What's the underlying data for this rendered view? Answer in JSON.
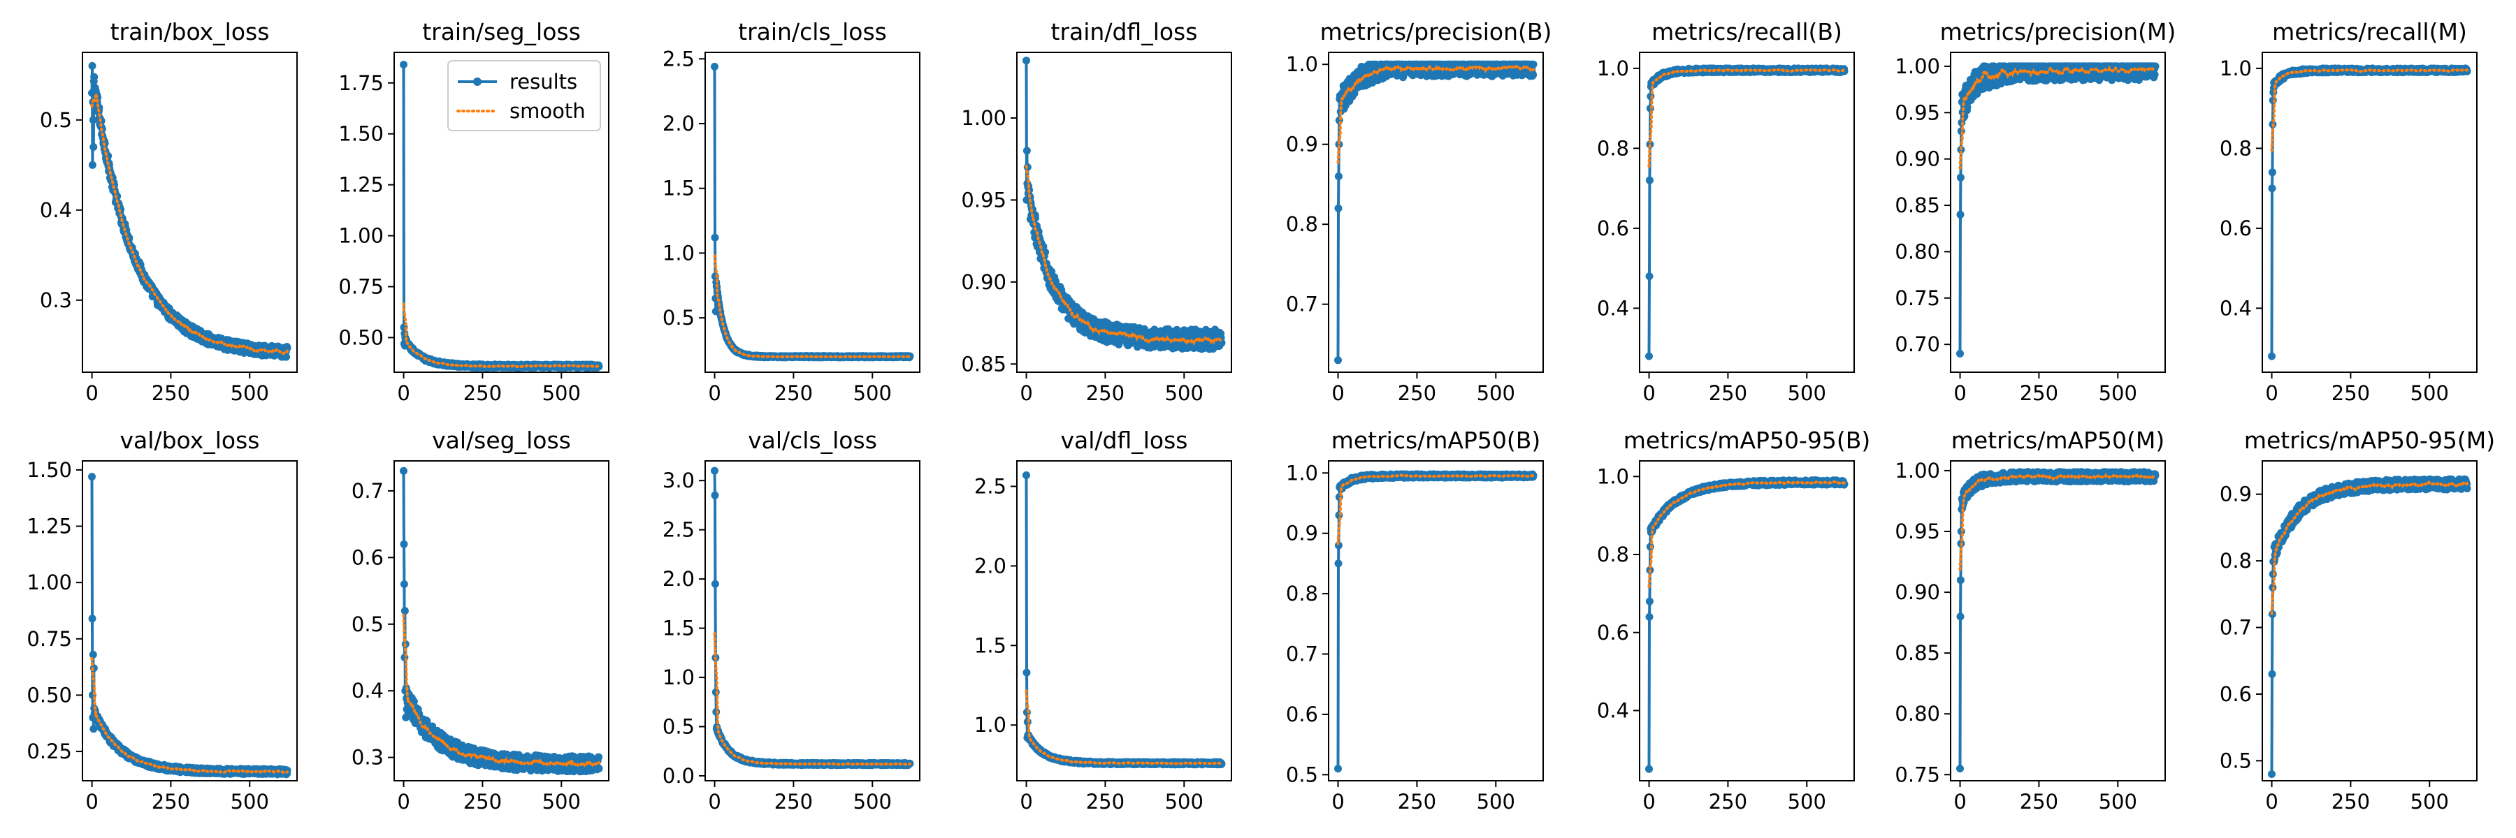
{
  "colors": {
    "results": "#1f77b4",
    "smooth": "#ff7f0e",
    "frame": "#000000",
    "background": "#ffffff"
  },
  "legend": {
    "location": "upper right of panel train/seg_loss",
    "entries": [
      {
        "label": "results",
        "style": "solid line with circle markers",
        "color": "#1f77b4"
      },
      {
        "label": "smooth",
        "style": "dotted line",
        "color": "#ff7f0e"
      }
    ]
  },
  "chart_data": [
    {
      "type": "line",
      "title": "train/box_loss",
      "xlabel": "",
      "ylabel": "",
      "epochs": 620,
      "xlim": [
        -30,
        650
      ],
      "ylim": [
        0.22,
        0.575
      ],
      "xticks": [
        0,
        250,
        500
      ],
      "xtick_labels": [
        "0",
        "250",
        "500"
      ],
      "yticks": [
        0.3,
        0.4,
        0.5
      ],
      "ytick_labels": [
        "0.3",
        "0.4",
        "0.5"
      ],
      "shape": "decay",
      "curve": {
        "start": 0.56,
        "end": 0.24,
        "k": 0.008,
        "slope": 4e-05
      },
      "noise": 0.006,
      "early_points": [
        0.53,
        0.56,
        0.45,
        0.52,
        0.5,
        0.47
      ],
      "series": [
        {
          "name": "results"
        },
        {
          "name": "smooth"
        }
      ]
    },
    {
      "type": "line",
      "title": "train/seg_loss",
      "xlabel": "",
      "ylabel": "",
      "epochs": 620,
      "xlim": [
        -30,
        650
      ],
      "ylim": [
        0.33,
        1.9
      ],
      "xticks": [
        0,
        250,
        500
      ],
      "xtick_labels": [
        "0",
        "250",
        "500"
      ],
      "yticks": [
        0.5,
        0.75,
        1.0,
        1.25,
        1.5,
        1.75
      ],
      "ytick_labels": [
        "0.50",
        "0.75",
        "1.00",
        "1.25",
        "1.50",
        "1.75"
      ],
      "shape": "decay",
      "curve": {
        "start": 0.5,
        "end": 0.36,
        "k": 0.02,
        "slope": 4e-05
      },
      "noise": 0.008,
      "early_points": [
        1.84,
        0.55,
        0.47,
        0.52,
        0.46,
        0.5
      ],
      "legend": true,
      "series": [
        {
          "name": "results"
        },
        {
          "name": "smooth"
        }
      ]
    },
    {
      "type": "line",
      "title": "train/cls_loss",
      "xlabel": "",
      "ylabel": "",
      "epochs": 620,
      "xlim": [
        -30,
        650
      ],
      "ylim": [
        0.08,
        2.55
      ],
      "xticks": [
        0,
        250,
        500
      ],
      "xtick_labels": [
        "0",
        "250",
        "500"
      ],
      "yticks": [
        0.5,
        1.0,
        1.5,
        2.0,
        2.5
      ],
      "ytick_labels": [
        "0.5",
        "1.0",
        "1.5",
        "2.0",
        "2.5"
      ],
      "shape": "decay",
      "curve": {
        "start": 0.9,
        "end": 0.2,
        "k": 0.04,
        "slope": 3e-05
      },
      "noise": 0.006,
      "early_points": [
        2.44,
        1.12,
        0.82,
        0.65,
        0.55
      ],
      "series": [
        {
          "name": "results"
        },
        {
          "name": "smooth"
        }
      ]
    },
    {
      "type": "line",
      "title": "train/dfl_loss",
      "xlabel": "",
      "ylabel": "",
      "epochs": 620,
      "xlim": [
        -30,
        650
      ],
      "ylim": [
        0.845,
        1.04
      ],
      "xticks": [
        0,
        250,
        500
      ],
      "xtick_labels": [
        "0",
        "250",
        "500"
      ],
      "yticks": [
        0.85,
        0.9,
        0.95,
        1.0
      ],
      "ytick_labels": [
        "0.85",
        "0.90",
        "0.95",
        "1.00"
      ],
      "shape": "decay",
      "curve": {
        "start": 0.96,
        "end": 0.865,
        "k": 0.012,
        "slope": 0.0
      },
      "noise": 0.006,
      "early_points": [
        1.035,
        0.95,
        0.98,
        0.96,
        0.97
      ],
      "series": [
        {
          "name": "results"
        },
        {
          "name": "smooth"
        }
      ]
    },
    {
      "type": "line",
      "title": "metrics/precision(B)",
      "xlabel": "",
      "ylabel": "",
      "epochs": 620,
      "xlim": [
        -30,
        650
      ],
      "ylim": [
        0.615,
        1.015
      ],
      "xticks": [
        0,
        250,
        500
      ],
      "xtick_labels": [
        "0",
        "250",
        "500"
      ],
      "yticks": [
        0.7,
        0.8,
        0.9,
        1.0
      ],
      "ytick_labels": [
        "0.7",
        "0.8",
        "0.9",
        "1.0"
      ],
      "shape": "rise",
      "curve": {
        "start": 0.94,
        "end": 0.997,
        "k": 0.02,
        "slope": 0.0
      },
      "noise": 0.012,
      "early_points": [
        0.63,
        0.82,
        0.86,
        0.9,
        0.93
      ],
      "series": [
        {
          "name": "results"
        },
        {
          "name": "smooth"
        }
      ]
    },
    {
      "type": "line",
      "title": "metrics/recall(B)",
      "xlabel": "",
      "ylabel": "",
      "epochs": 620,
      "xlim": [
        -30,
        650
      ],
      "ylim": [
        0.24,
        1.04
      ],
      "xticks": [
        0,
        250,
        500
      ],
      "xtick_labels": [
        "0",
        "250",
        "500"
      ],
      "yticks": [
        0.4,
        0.6,
        0.8,
        1.0
      ],
      "ytick_labels": [
        "0.4",
        "0.6",
        "0.8",
        "1.0"
      ],
      "shape": "rise",
      "curve": {
        "start": 0.95,
        "end": 0.995,
        "k": 0.03,
        "slope": 0.0
      },
      "noise": 0.005,
      "early_points": [
        0.28,
        0.48,
        0.72,
        0.81,
        0.9,
        0.93
      ],
      "series": [
        {
          "name": "results"
        },
        {
          "name": "smooth"
        }
      ]
    },
    {
      "type": "line",
      "title": "metrics/precision(M)",
      "xlabel": "",
      "ylabel": "",
      "epochs": 620,
      "xlim": [
        -30,
        650
      ],
      "ylim": [
        0.67,
        1.015
      ],
      "xticks": [
        0,
        250,
        500
      ],
      "xtick_labels": [
        "0",
        "250",
        "500"
      ],
      "yticks": [
        0.7,
        0.75,
        0.8,
        0.85,
        0.9,
        0.95,
        1.0
      ],
      "ytick_labels": [
        "0.70",
        "0.75",
        "0.80",
        "0.85",
        "0.90",
        "0.95",
        "1.00"
      ],
      "shape": "rise",
      "curve": {
        "start": 0.95,
        "end": 0.997,
        "k": 0.02,
        "slope": 0.0
      },
      "noise": 0.012,
      "early_points": [
        0.69,
        0.84,
        0.88,
        0.91,
        0.93
      ],
      "series": [
        {
          "name": "results"
        },
        {
          "name": "smooth"
        }
      ]
    },
    {
      "type": "line",
      "title": "metrics/recall(M)",
      "xlabel": "",
      "ylabel": "",
      "epochs": 620,
      "xlim": [
        -30,
        650
      ],
      "ylim": [
        0.24,
        1.04
      ],
      "xticks": [
        0,
        250,
        500
      ],
      "xtick_labels": [
        "0",
        "250",
        "500"
      ],
      "yticks": [
        0.4,
        0.6,
        0.8,
        1.0
      ],
      "ytick_labels": [
        "0.4",
        "0.6",
        "0.8",
        "1.0"
      ],
      "shape": "rise",
      "curve": {
        "start": 0.95,
        "end": 0.995,
        "k": 0.03,
        "slope": 0.0
      },
      "noise": 0.005,
      "early_points": [
        0.28,
        0.7,
        0.74,
        0.86,
        0.92,
        0.94
      ],
      "series": [
        {
          "name": "results"
        },
        {
          "name": "smooth"
        }
      ]
    },
    {
      "type": "line",
      "title": "val/box_loss",
      "xlabel": "",
      "ylabel": "",
      "epochs": 620,
      "xlim": [
        -30,
        650
      ],
      "ylim": [
        0.12,
        1.54
      ],
      "xticks": [
        0,
        250,
        500
      ],
      "xtick_labels": [
        "0",
        "250",
        "500"
      ],
      "yticks": [
        0.25,
        0.5,
        0.75,
        1.0,
        1.25,
        1.5
      ],
      "ytick_labels": [
        "0.25",
        "0.50",
        "0.75",
        "1.00",
        "1.25",
        "1.50"
      ],
      "shape": "decay",
      "curve": {
        "start": 0.45,
        "end": 0.16,
        "k": 0.012,
        "slope": 4e-05
      },
      "noise": 0.012,
      "early_points": [
        1.47,
        0.84,
        0.5,
        0.4,
        0.68,
        0.35,
        0.62
      ],
      "series": [
        {
          "name": "results"
        },
        {
          "name": "smooth"
        }
      ]
    },
    {
      "type": "line",
      "title": "val/seg_loss",
      "xlabel": "",
      "ylabel": "",
      "epochs": 620,
      "xlim": [
        -30,
        650
      ],
      "ylim": [
        0.265,
        0.745
      ],
      "xticks": [
        0,
        250,
        500
      ],
      "xtick_labels": [
        "0",
        "250",
        "500"
      ],
      "yticks": [
        0.3,
        0.4,
        0.5,
        0.6,
        0.7
      ],
      "ytick_labels": [
        "0.3",
        "0.4",
        "0.5",
        "0.6",
        "0.7"
      ],
      "shape": "decay",
      "curve": {
        "start": 0.4,
        "end": 0.29,
        "k": 0.01,
        "slope": 2e-05
      },
      "noise": 0.012,
      "early_points": [
        0.73,
        0.62,
        0.56,
        0.45,
        0.52,
        0.4,
        0.47,
        0.36
      ],
      "series": [
        {
          "name": "results"
        },
        {
          "name": "smooth"
        }
      ]
    },
    {
      "type": "line",
      "title": "val/cls_loss",
      "xlabel": "",
      "ylabel": "",
      "epochs": 620,
      "xlim": [
        -30,
        650
      ],
      "ylim": [
        -0.05,
        3.2
      ],
      "xticks": [
        0,
        250,
        500
      ],
      "xtick_labels": [
        "0",
        "250",
        "500"
      ],
      "yticks": [
        0.0,
        0.5,
        1.0,
        1.5,
        2.0,
        2.5,
        3.0
      ],
      "ytick_labels": [
        "0.0",
        "0.5",
        "1.0",
        "1.5",
        "2.0",
        "2.5",
        "3.0"
      ],
      "shape": "decay",
      "curve": {
        "start": 0.55,
        "end": 0.12,
        "k": 0.025,
        "slope": 4e-05
      },
      "noise": 0.012,
      "early_points": [
        3.1,
        2.85,
        1.95,
        1.2,
        0.85,
        0.65
      ],
      "series": [
        {
          "name": "results"
        },
        {
          "name": "smooth"
        }
      ]
    },
    {
      "type": "line",
      "title": "val/dfl_loss",
      "xlabel": "",
      "ylabel": "",
      "epochs": 620,
      "xlim": [
        -30,
        650
      ],
      "ylim": [
        0.65,
        2.66
      ],
      "xticks": [
        0,
        250,
        500
      ],
      "xtick_labels": [
        "0",
        "250",
        "500"
      ],
      "yticks": [
        1.0,
        1.5,
        2.0,
        2.5
      ],
      "ytick_labels": [
        "1.0",
        "1.5",
        "2.0",
        "2.5"
      ],
      "shape": "decay",
      "curve": {
        "start": 0.95,
        "end": 0.76,
        "k": 0.02,
        "slope": 2e-05
      },
      "noise": 0.008,
      "early_points": [
        2.57,
        1.33,
        1.08,
        0.92,
        1.02
      ],
      "series": [
        {
          "name": "results"
        },
        {
          "name": "smooth"
        }
      ]
    },
    {
      "type": "line",
      "title": "metrics/mAP50(B)",
      "xlabel": "",
      "ylabel": "",
      "epochs": 620,
      "xlim": [
        -30,
        650
      ],
      "ylim": [
        0.49,
        1.02
      ],
      "xticks": [
        0,
        250,
        500
      ],
      "xtick_labels": [
        "0",
        "250",
        "500"
      ],
      "yticks": [
        0.5,
        0.6,
        0.7,
        0.8,
        0.9,
        1.0
      ],
      "ytick_labels": [
        "0.5",
        "0.6",
        "0.7",
        "0.8",
        "0.9",
        "1.0"
      ],
      "shape": "rise",
      "curve": {
        "start": 0.97,
        "end": 0.995,
        "k": 0.03,
        "slope": 0.0
      },
      "noise": 0.003,
      "early_points": [
        0.51,
        0.85,
        0.88,
        0.93,
        0.96
      ],
      "series": [
        {
          "name": "results"
        },
        {
          "name": "smooth"
        }
      ]
    },
    {
      "type": "line",
      "title": "metrics/mAP50-95(B)",
      "xlabel": "",
      "ylabel": "",
      "epochs": 620,
      "xlim": [
        -30,
        650
      ],
      "ylim": [
        0.22,
        1.04
      ],
      "xticks": [
        0,
        250,
        500
      ],
      "xtick_labels": [
        "0",
        "250",
        "500"
      ],
      "yticks": [
        0.4,
        0.6,
        0.8,
        1.0
      ],
      "ytick_labels": [
        "0.4",
        "0.6",
        "0.8",
        "1.0"
      ],
      "shape": "rise",
      "curve": {
        "start": 0.85,
        "end": 0.985,
        "k": 0.012,
        "slope": 0.0
      },
      "noise": 0.006,
      "early_points": [
        0.25,
        0.64,
        0.68,
        0.76,
        0.82
      ],
      "series": [
        {
          "name": "results"
        },
        {
          "name": "smooth"
        }
      ]
    },
    {
      "type": "line",
      "title": "metrics/mAP50(M)",
      "xlabel": "",
      "ylabel": "",
      "epochs": 620,
      "xlim": [
        -30,
        650
      ],
      "ylim": [
        0.745,
        1.008
      ],
      "xticks": [
        0,
        250,
        500
      ],
      "xtick_labels": [
        "0",
        "250",
        "500"
      ],
      "yticks": [
        0.75,
        0.8,
        0.85,
        0.9,
        0.95,
        1.0
      ],
      "ytick_labels": [
        "0.75",
        "0.80",
        "0.85",
        "0.90",
        "0.95",
        "1.00"
      ],
      "shape": "rise",
      "curve": {
        "start": 0.97,
        "end": 0.995,
        "k": 0.03,
        "slope": 0.0
      },
      "noise": 0.004,
      "early_points": [
        0.755,
        0.88,
        0.91,
        0.94,
        0.95
      ],
      "series": [
        {
          "name": "results"
        },
        {
          "name": "smooth"
        }
      ]
    },
    {
      "type": "line",
      "title": "metrics/mAP50-95(M)",
      "xlabel": "",
      "ylabel": "",
      "epochs": 620,
      "xlim": [
        -30,
        650
      ],
      "ylim": [
        0.47,
        0.95
      ],
      "xticks": [
        0,
        250,
        500
      ],
      "xtick_labels": [
        "0",
        "250",
        "500"
      ],
      "yticks": [
        0.5,
        0.6,
        0.7,
        0.8,
        0.9
      ],
      "ytick_labels": [
        "0.5",
        "0.6",
        "0.7",
        "0.8",
        "0.9"
      ],
      "shape": "rise",
      "curve": {
        "start": 0.8,
        "end": 0.915,
        "k": 0.012,
        "slope": 0.0
      },
      "noise": 0.008,
      "early_points": [
        0.48,
        0.63,
        0.72,
        0.76,
        0.78
      ],
      "series": [
        {
          "name": "results"
        },
        {
          "name": "smooth"
        }
      ]
    }
  ]
}
